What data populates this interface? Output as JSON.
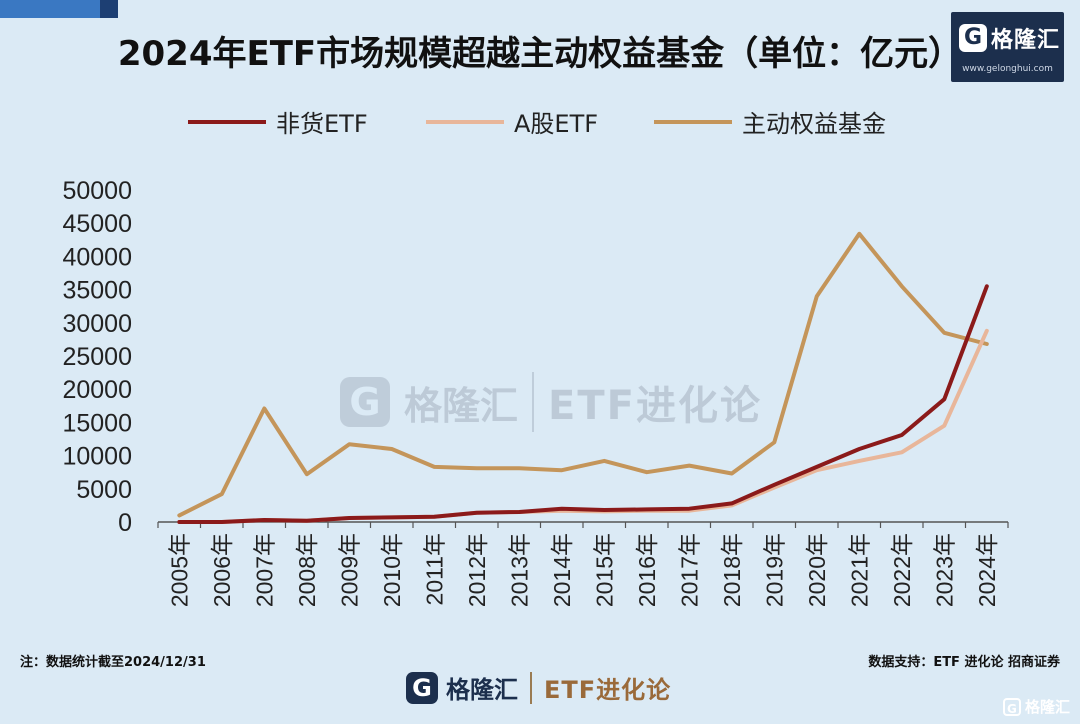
{
  "brand": {
    "logo_glyph": "G",
    "name": "格隆汇",
    "url": "www.gelonghui.com"
  },
  "watermark": {
    "logo_glyph": "G",
    "name": "格隆汇",
    "url": "www.gelonghui.com",
    "etf_text": "ETF进化论"
  },
  "footer": {
    "note": "注：数据统计截至2024/12/31",
    "source": "数据支持：ETF 进化论  招商证券",
    "logo_glyph": "G",
    "logo_name": "格隆汇",
    "logo_url": "www.gelonghui.com",
    "etf_text": "ETF进化论",
    "corner_text": "格隆汇"
  },
  "colors": {
    "background": "#dbeaf5",
    "brand_dark": "#1c2f4d"
  },
  "chart_data": {
    "type": "line",
    "title": "2024年ETF市场规模超越主动权益基金（单位：亿元）",
    "xlabel": "",
    "ylabel": "",
    "categories": [
      "2005年",
      "2006年",
      "2007年",
      "2008年",
      "2009年",
      "2010年",
      "2011年",
      "2012年",
      "2013年",
      "2014年",
      "2015年",
      "2016年",
      "2017年",
      "2018年",
      "2019年",
      "2020年",
      "2021年",
      "2022年",
      "2023年",
      "2024年"
    ],
    "ylim": [
      0,
      50000
    ],
    "yticks": [
      0,
      5000,
      10000,
      15000,
      20000,
      25000,
      30000,
      35000,
      40000,
      45000,
      50000
    ],
    "grid": false,
    "legend_position": "top",
    "series": [
      {
        "name": "非货ETF",
        "color": "#8b1a1a",
        "values": [
          0,
          0,
          300,
          200,
          600,
          700,
          800,
          1400,
          1500,
          2000,
          1800,
          1900,
          2000,
          2800,
          5600,
          8300,
          11000,
          13100,
          18500,
          35500
        ]
      },
      {
        "name": "A股ETF",
        "color": "#e8b69a",
        "values": [
          0,
          0,
          300,
          200,
          600,
          700,
          800,
          1400,
          1500,
          1700,
          1600,
          1700,
          1700,
          2500,
          5200,
          7800,
          9200,
          10500,
          14500,
          28800
        ]
      },
      {
        "name": "主动权益基金",
        "color": "#c4955a",
        "values": [
          1000,
          4200,
          17100,
          7200,
          11700,
          11000,
          8300,
          8100,
          8100,
          7800,
          9200,
          7500,
          8500,
          7300,
          12000,
          34000,
          43400,
          35500,
          28500,
          26800
        ]
      }
    ]
  }
}
